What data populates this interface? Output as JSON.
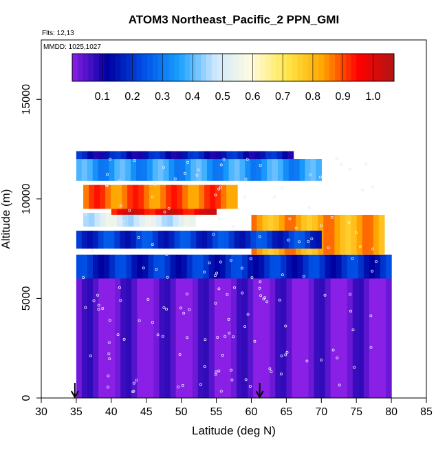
{
  "chart_data": {
    "type": "heatmap",
    "title": "ATOM3 Northeast_Pacific_2 PPN_GMI",
    "flights_label": "Flts: 12,13",
    "dates_label": "MMDD: 1025,1027",
    "xlabel": "Latitude (deg N)",
    "ylabel": "Altitude (m)",
    "xlim": [
      30,
      85
    ],
    "ylim": [
      0,
      17500
    ],
    "x_ticks": [
      "30",
      "35",
      "40",
      "45",
      "50",
      "55",
      "60",
      "65",
      "70",
      "75",
      "80",
      "85"
    ],
    "y_ticks": [
      "0",
      "5000",
      "10000",
      "15000"
    ],
    "colorbar_ticks": [
      "0.1",
      "0.2",
      "0.3",
      "0.4",
      "0.5",
      "0.6",
      "0.7",
      "0.8",
      "0.9",
      "1.0"
    ],
    "colorbar_range": [
      0,
      1.07
    ],
    "colorscale": [
      "#8a1fe6",
      "#0000a0",
      "#0050e6",
      "#1aa0ff",
      "#cfe8ff",
      "#fffbe0",
      "#ffe84a",
      "#ffa500",
      "#ff0000",
      "#b01515"
    ],
    "arrow_latitudes": [
      34.8,
      61.2
    ],
    "regions": [
      {
        "lat_range": [
          35,
          66
        ],
        "alt_range": [
          12000,
          12400
        ],
        "value": 0.15
      },
      {
        "lat_range": [
          35,
          70
        ],
        "alt_range": [
          10900,
          12000
        ],
        "value": 0.35
      },
      {
        "lat_range": [
          36,
          58
        ],
        "alt_range": [
          9500,
          10700
        ],
        "value": 0.88
      },
      {
        "lat_range": [
          40,
          55
        ],
        "alt_range": [
          9200,
          9800
        ],
        "value": 0.98
      },
      {
        "lat_range": [
          36,
          52
        ],
        "alt_range": [
          8600,
          9300
        ],
        "value": 0.5
      },
      {
        "lat_range": [
          35,
          70
        ],
        "alt_range": [
          7500,
          8400
        ],
        "value": 0.2
      },
      {
        "lat_range": [
          60,
          79
        ],
        "alt_range": [
          7200,
          9200
        ],
        "value": 0.82
      },
      {
        "lat_range": [
          35,
          80
        ],
        "alt_range": [
          6000,
          7200
        ],
        "value": 0.18
      },
      {
        "lat_range": [
          35,
          80
        ],
        "alt_range": [
          0,
          6000
        ],
        "value": 0.02
      }
    ]
  }
}
